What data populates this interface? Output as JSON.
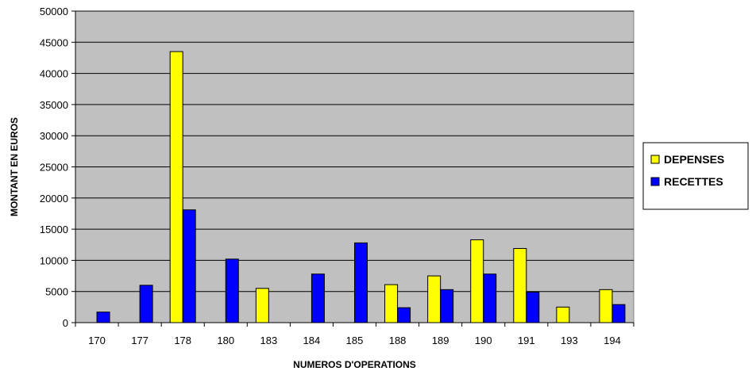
{
  "chart_data": {
    "type": "bar",
    "title": "",
    "xlabel": "NUMEROS D'OPERATIONS",
    "ylabel": "MONTANT EN EUROS",
    "ylim": [
      0,
      50000
    ],
    "yticks": [
      0,
      5000,
      10000,
      15000,
      20000,
      25000,
      30000,
      35000,
      40000,
      45000,
      50000
    ],
    "grid": true,
    "legend_position": "right",
    "categories": [
      "170",
      "177",
      "178",
      "180",
      "183",
      "184",
      "185",
      "188",
      "189",
      "190",
      "191",
      "193",
      "194"
    ],
    "series": [
      {
        "name": "DEPENSES",
        "color": "#ffff00",
        "values": [
          0,
          0,
          43500,
          0,
          5500,
          0,
          0,
          6100,
          7500,
          13300,
          11900,
          2500,
          5300
        ]
      },
      {
        "name": "RECETTES",
        "color": "#0000ff",
        "values": [
          1700,
          6000,
          18100,
          10200,
          0,
          7800,
          12800,
          2400,
          5300,
          7800,
          4900,
          0,
          2900
        ]
      }
    ],
    "plot_background": "#c0c0c0"
  }
}
